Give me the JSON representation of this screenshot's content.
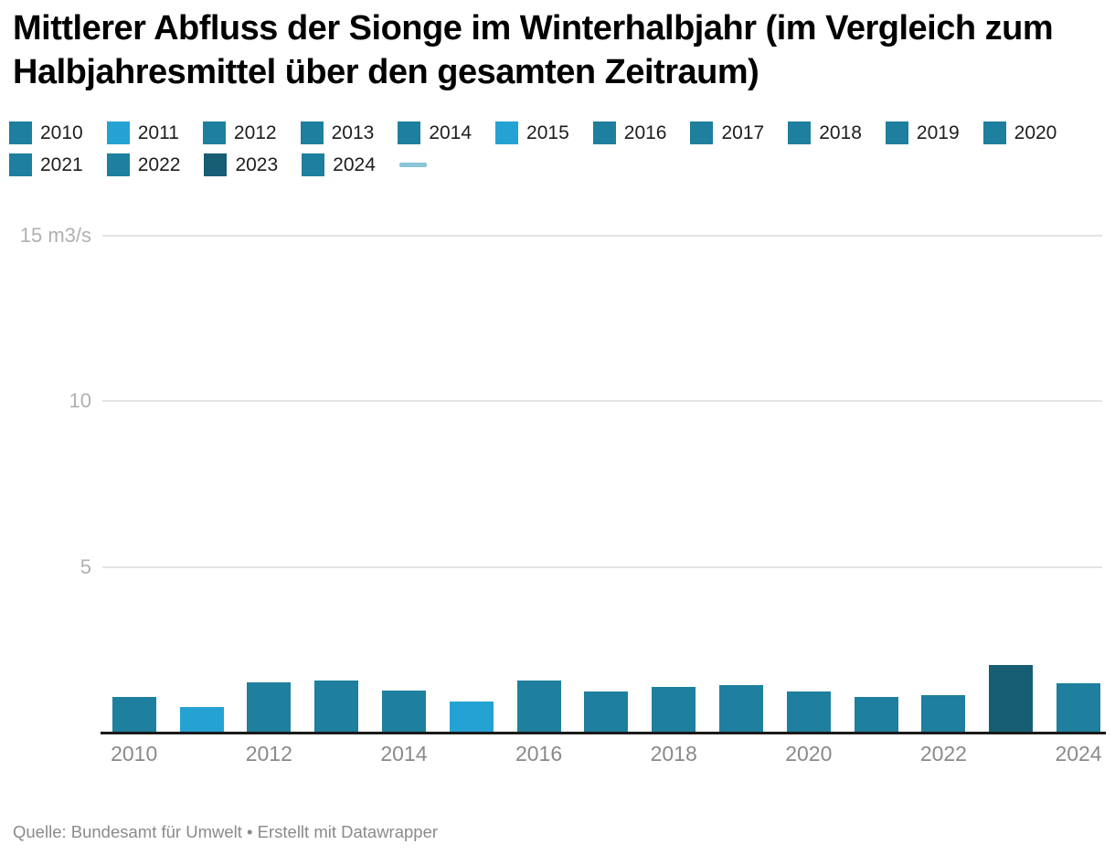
{
  "title": "Mittlerer Abfluss der Sionge im Winterhalbjahr (im Vergleich zum Halbjahresmittel über den gesamten Zeitraum)",
  "legend": {
    "items": [
      {
        "label": "2010",
        "color": "#1e7f9e"
      },
      {
        "label": "2011",
        "color": "#25a2d4"
      },
      {
        "label": "2012",
        "color": "#1e7f9e"
      },
      {
        "label": "2013",
        "color": "#1e7f9e"
      },
      {
        "label": "2014",
        "color": "#1e7f9e"
      },
      {
        "label": "2015",
        "color": "#25a2d4"
      },
      {
        "label": "2016",
        "color": "#1e7f9e"
      },
      {
        "label": "2017",
        "color": "#1e7f9e"
      },
      {
        "label": "2018",
        "color": "#1e7f9e"
      },
      {
        "label": "2019",
        "color": "#1e7f9e"
      },
      {
        "label": "2020",
        "color": "#1e7f9e"
      },
      {
        "label": "2021",
        "color": "#1e7f9e"
      },
      {
        "label": "2022",
        "color": "#1e7f9e"
      },
      {
        "label": "2023",
        "color": "#175d74"
      },
      {
        "label": "2024",
        "color": "#1e7f9e"
      }
    ],
    "line_marker_color": "#8bc3d7"
  },
  "chart_data": {
    "type": "bar",
    "categories": [
      2010,
      2011,
      2012,
      2013,
      2014,
      2015,
      2016,
      2017,
      2018,
      2019,
      2020,
      2021,
      2022,
      2023,
      2024
    ],
    "values": [
      1.05,
      0.75,
      1.5,
      1.55,
      1.25,
      0.9,
      1.55,
      1.2,
      1.35,
      1.4,
      1.2,
      1.05,
      1.1,
      2.0,
      1.45
    ],
    "colors": [
      "#1e7f9e",
      "#25a2d4",
      "#1e7f9e",
      "#1e7f9e",
      "#1e7f9e",
      "#25a2d4",
      "#1e7f9e",
      "#1e7f9e",
      "#1e7f9e",
      "#1e7f9e",
      "#1e7f9e",
      "#1e7f9e",
      "#1e7f9e",
      "#175d74",
      "#1e7f9e"
    ],
    "yticks": [
      {
        "value": 5,
        "label": "5"
      },
      {
        "value": 10,
        "label": "10"
      },
      {
        "value": 15,
        "label": "15 m3/s"
      }
    ],
    "xticks": [
      2010,
      2012,
      2014,
      2016,
      2018,
      2020,
      2022,
      2024
    ],
    "ylim": [
      0,
      16.5
    ],
    "unit": "m3/s",
    "grid": "horizontal",
    "legend_position": "top"
  },
  "footer": "Quelle: Bundesamt für Umwelt • Erstellt mit Datawrapper"
}
